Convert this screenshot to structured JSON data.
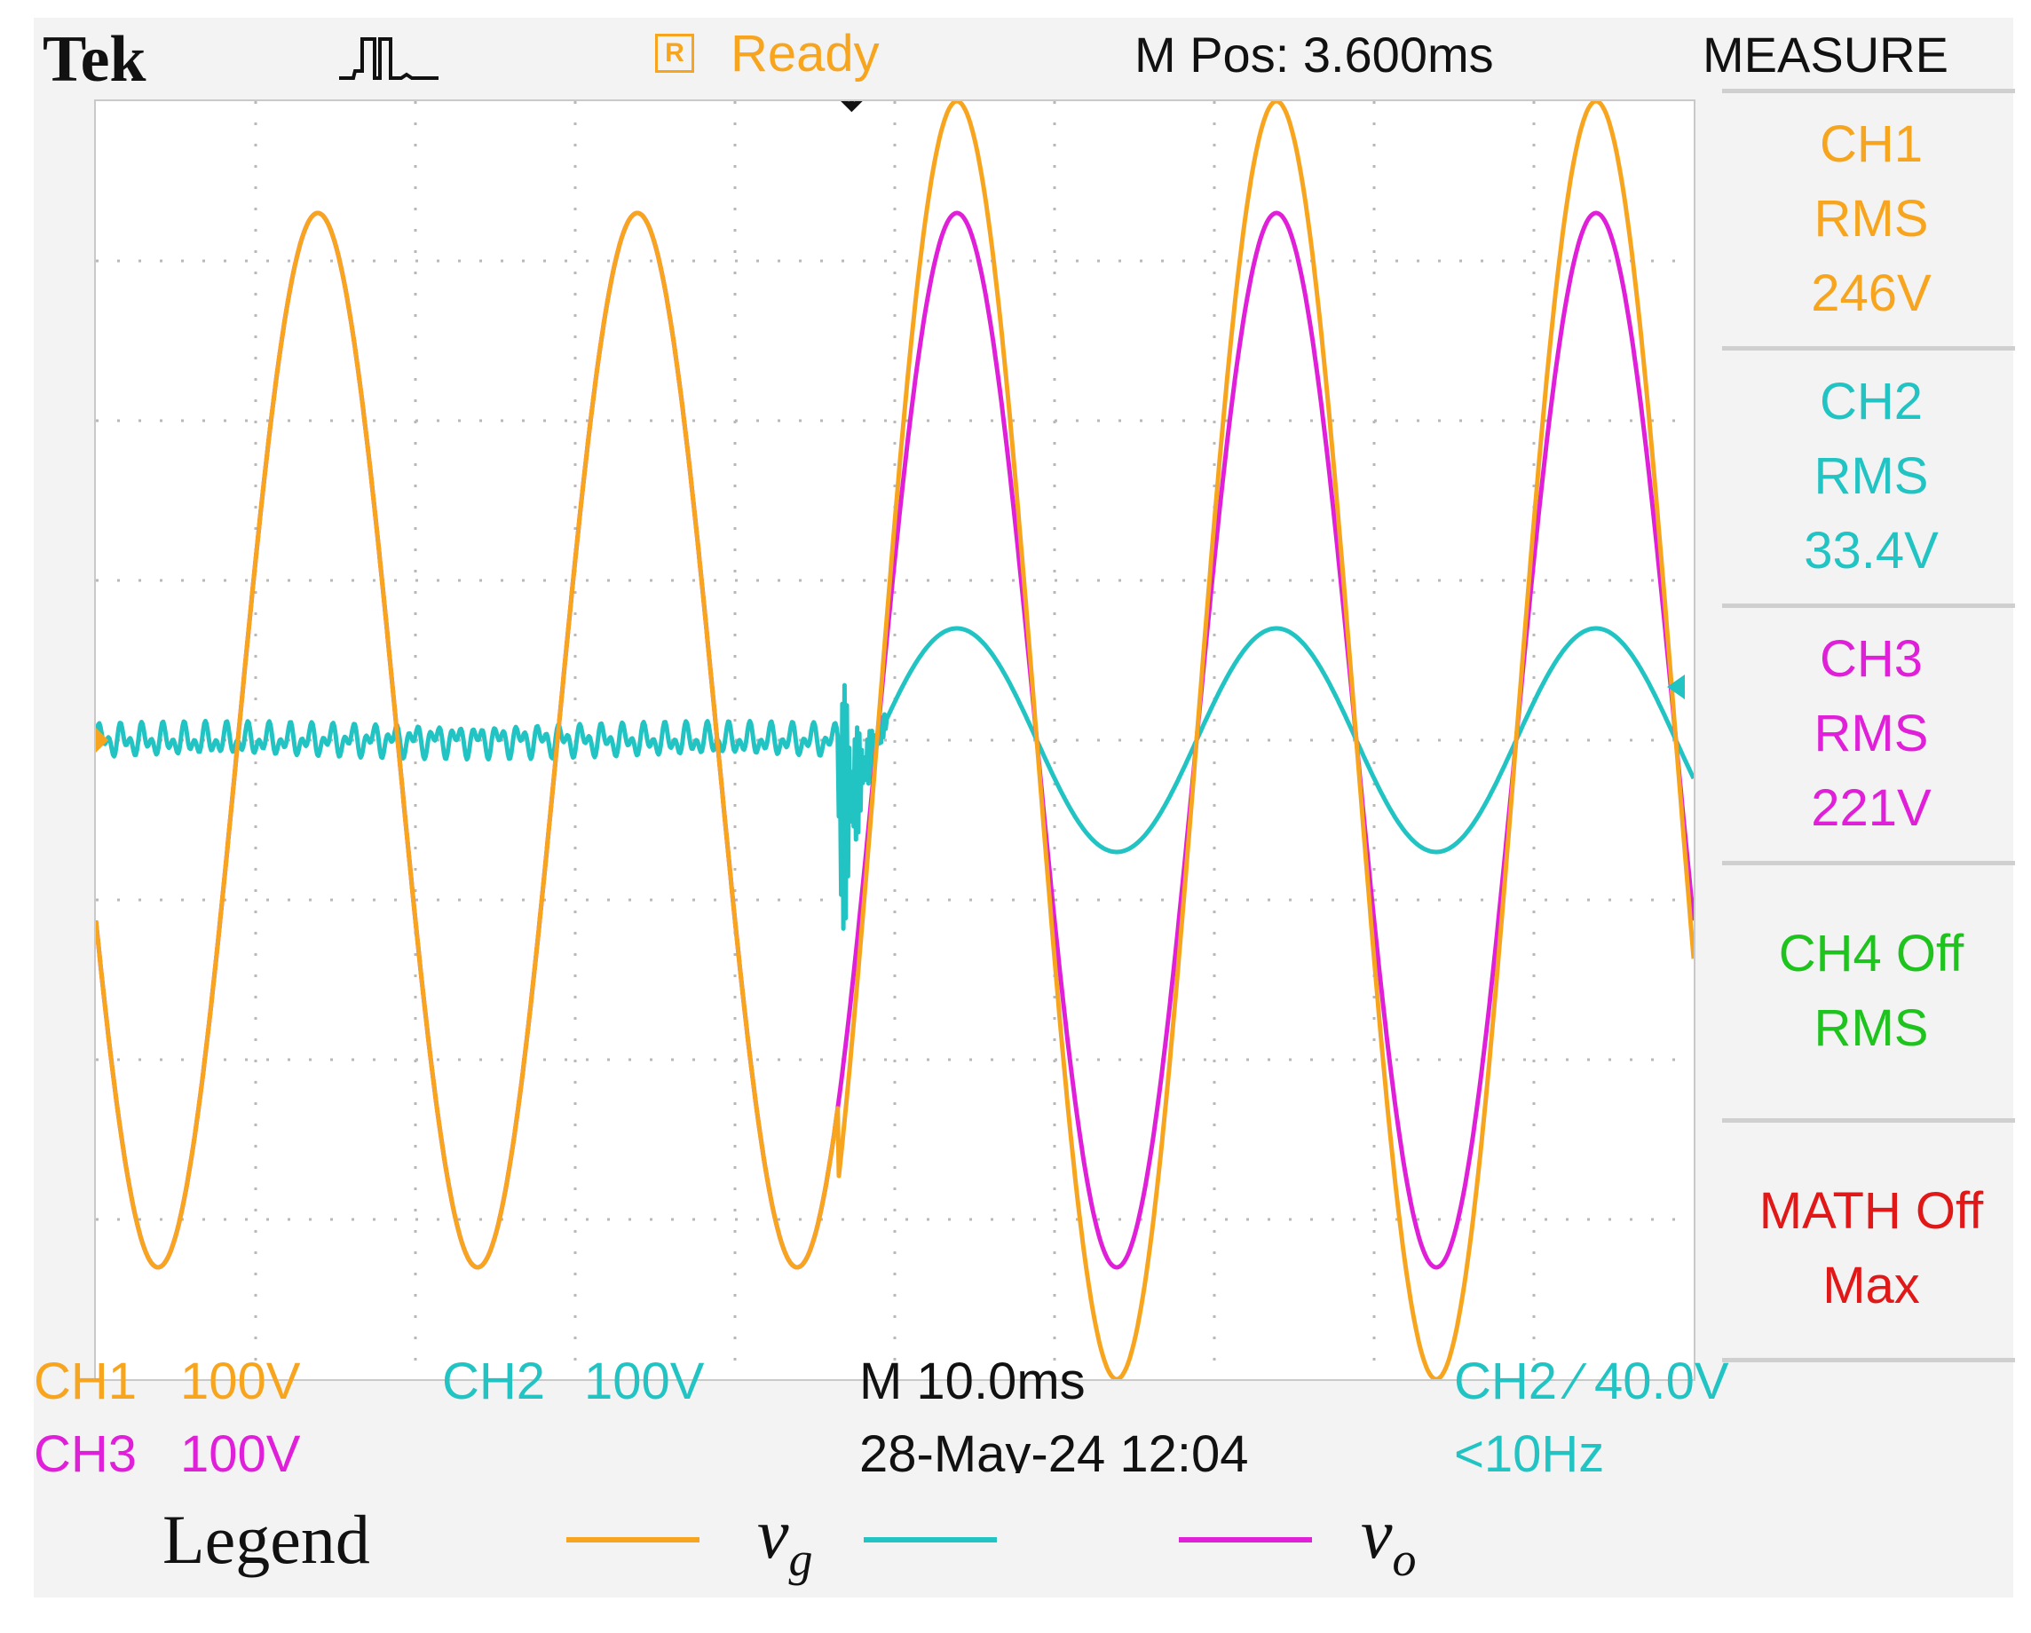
{
  "header": {
    "brand": "Tek",
    "status_icon_letter": "R",
    "status": "Ready",
    "m_pos": "M Pos: 3.600ms",
    "measure_title": "MEASURE"
  },
  "measure": [
    {
      "lines": [
        "CH1",
        "RMS",
        "246V"
      ],
      "color": "#f7a51e"
    },
    {
      "lines": [
        "CH2",
        "RMS",
        "33.4V"
      ],
      "color": "#22c3c3"
    },
    {
      "lines": [
        "CH3",
        "RMS",
        "221V"
      ],
      "color": "#e020d8"
    },
    {
      "lines": [
        "CH4 Off",
        "RMS"
      ],
      "color": "#1ec31e"
    },
    {
      "lines": [
        "MATH Off",
        "Max"
      ],
      "color": "#e01818"
    }
  ],
  "bottom": {
    "ch1_label": "CH1",
    "ch1_scale": "100V",
    "ch3_label": "CH3",
    "ch3_scale": "100V",
    "ch2_label": "CH2",
    "ch2_scale": "100V",
    "timebase": "M 10.0ms",
    "datetime": "28-May-24 12:04",
    "trigger": "CH2 ∕ 40.0V",
    "trigger_freq": "<10Hz"
  },
  "legend": {
    "label": "Legend",
    "items": [
      {
        "symbol": "v",
        "sub": "g",
        "color": "#f7a51e"
      },
      {
        "symbol": "",
        "sub": "",
        "color": "#22c3c3"
      },
      {
        "symbol": "v",
        "sub": "o",
        "color": "#e020d8"
      }
    ]
  },
  "chart_data": {
    "type": "line",
    "x_unit": "ms",
    "y_unit": "V",
    "xlim": [
      0,
      100
    ],
    "divisions": {
      "x": 10,
      "y": 8
    },
    "disturbance_time": 46.5,
    "series": [
      {
        "name": "CH1",
        "color": "#f7a51e",
        "volts_per_div": 100,
        "freq_hz": 50,
        "phase_deg": 200,
        "amplitude_before": 330,
        "amplitude_after": 400
      },
      {
        "name": "CH2",
        "color": "#22c3c3",
        "volts_per_div": 100,
        "freq_hz": 50,
        "phase_deg": 200,
        "amplitude_before": 0,
        "amplitude_after": 70
      },
      {
        "name": "CH3",
        "color": "#e020d8",
        "volts_per_div": 100,
        "freq_hz": 50,
        "phase_deg": 200,
        "amplitude_before": 330,
        "amplitude_after": 330
      }
    ],
    "grid": true
  }
}
